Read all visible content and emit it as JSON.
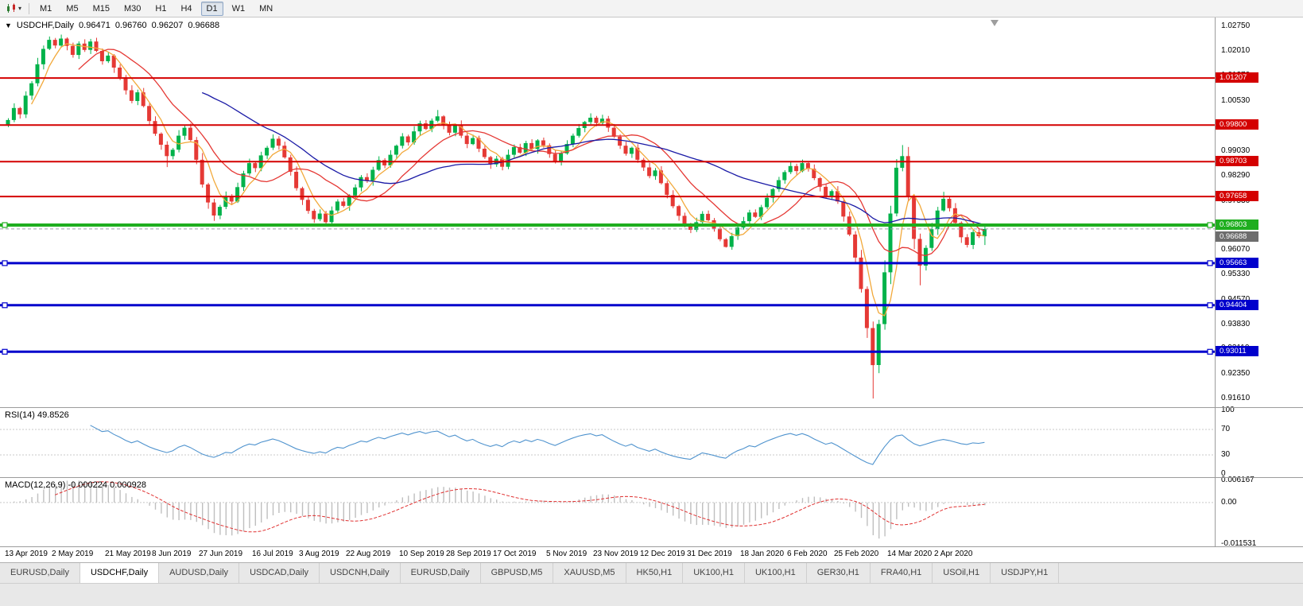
{
  "icons": {
    "caret": "▾",
    "marker": "▼"
  },
  "toolbar": {
    "chart_menu_icon": "candlestick-chart-icon",
    "timeframes": [
      {
        "label": "M1",
        "active": false
      },
      {
        "label": "M5",
        "active": false
      },
      {
        "label": "M15",
        "active": false
      },
      {
        "label": "M30",
        "active": false
      },
      {
        "label": "H1",
        "active": false
      },
      {
        "label": "H4",
        "active": false
      },
      {
        "label": "D1",
        "active": true
      },
      {
        "label": "W1",
        "active": false
      },
      {
        "label": "MN",
        "active": false
      }
    ]
  },
  "chart": {
    "symbol": "USDCHF,Daily",
    "open": "0.96471",
    "high": "0.96760",
    "low": "0.96207",
    "close": "0.96688",
    "bid_badge": "0.96688",
    "price_scale": [
      "1.02750",
      "1.02010",
      "1.01270",
      "1.00530",
      "0.99790",
      "0.99030",
      "0.98290",
      "0.97530",
      "0.96790",
      "0.96070",
      "0.95330",
      "0.94570",
      "0.93830",
      "0.93110",
      "0.92350",
      "0.91610"
    ],
    "levels": [
      {
        "price": 1.01207,
        "label": "1.01207",
        "color": "#d40000",
        "width": 2,
        "handles": false
      },
      {
        "price": 0.998,
        "label": "0.99800",
        "color": "#d40000",
        "width": 2,
        "handles": false
      },
      {
        "price": 0.98703,
        "label": "0.98703",
        "color": "#d40000",
        "width": 2,
        "handles": false
      },
      {
        "price": 0.97658,
        "label": "0.97658",
        "color": "#d40000",
        "width": 2,
        "handles": false
      },
      {
        "price": 0.96803,
        "label": "0.96803",
        "color": "#1fae1f",
        "width": 4,
        "handles": true
      },
      {
        "price": 0.95663,
        "label": "0.95663",
        "color": "#0000cc",
        "width": 3,
        "handles": true
      },
      {
        "price": 0.94404,
        "label": "0.94404",
        "color": "#0000cc",
        "width": 3,
        "handles": true
      },
      {
        "price": 0.93011,
        "label": "0.93011",
        "color": "#0000cc",
        "width": 3,
        "handles": true
      }
    ]
  },
  "rsi": {
    "label": "RSI(14) 49.8526",
    "period": 14,
    "levels": [
      70,
      30
    ],
    "scale": [
      "100",
      "70",
      "30",
      "0"
    ],
    "line_color": "#4f93ce"
  },
  "macd": {
    "label": "MACD(12,26,9) -0.000224 0.000928",
    "fast": 12,
    "slow": 26,
    "signal": 9,
    "scale_top": "0.006167",
    "scale_zero": "0.00",
    "scale_bottom": "-0.011531",
    "range": [
      -0.011531,
      0.006167
    ],
    "histogram_color": "#bfbfbf",
    "signal_color": "#e03030"
  },
  "tabs": [
    {
      "label": "EURUSD,Daily",
      "active": false
    },
    {
      "label": "USDCHF,Daily",
      "active": true
    },
    {
      "label": "AUDUSD,Daily",
      "active": false
    },
    {
      "label": "USDCAD,Daily",
      "active": false
    },
    {
      "label": "USDCNH,Daily",
      "active": false
    },
    {
      "label": "EURUSD,Daily",
      "active": false
    },
    {
      "label": "GBPUSD,M5",
      "active": false
    },
    {
      "label": "XAUUSD,M5",
      "active": false
    },
    {
      "label": "HK50,H1",
      "active": false
    },
    {
      "label": "UK100,H1",
      "active": false
    },
    {
      "label": "UK100,H1",
      "active": false
    },
    {
      "label": "GER30,H1",
      "active": false
    },
    {
      "label": "FRA40,H1",
      "active": false
    },
    {
      "label": "USOil,H1",
      "active": false
    },
    {
      "label": "USDJPY,H1",
      "active": false
    }
  ],
  "chart_data": {
    "type": "candlestick",
    "symbol": "USDCHF",
    "timeframe": "D1",
    "y_range": [
      0.9135,
      1.0302
    ],
    "x0": 10,
    "dx": 7.4,
    "body_w": 5,
    "up_color": "#00b24a",
    "down_color": "#e53935",
    "first_open": 0.9982,
    "wick_pattern": [
      0.0009,
      0.0017,
      0.0005,
      0.0013,
      0.0008,
      0.0019,
      0.0011,
      0.0015
    ],
    "wick_overrides": {
      "7": {
        "high": 1.0245
      },
      "27": {
        "low": 0.9854
      },
      "35": {
        "low": 0.9693
      },
      "45": {
        "high": 0.9952
      },
      "54": {
        "low": 0.9678
      },
      "73": {
        "high": 1.0025
      },
      "99": {
        "high": 1.0015
      },
      "122": {
        "low": 0.9613
      },
      "147": {
        "low": 0.9161
      },
      "152": {
        "high": 0.992
      },
      "155": {
        "low": 0.95
      },
      "159": {
        "high": 0.978
      },
      "166": {
        "high": 0.9676,
        "low": 0.96207
      }
    },
    "ma": [
      {
        "period": 5,
        "color": "#f2a93b"
      },
      {
        "period": 13,
        "color": "#e53935"
      },
      {
        "period": 34,
        "color": "#1a1aa6"
      }
    ],
    "x_labels": [
      {
        "text": "13 Apr 2019",
        "i": 0
      },
      {
        "text": "2 May 2019",
        "i": 8
      },
      {
        "text": "21 May 2019",
        "i": 17
      },
      {
        "text": "8 Jun 2019",
        "i": 25
      },
      {
        "text": "27 Jun 2019",
        "i": 33
      },
      {
        "text": "16 Jul 2019",
        "i": 42
      },
      {
        "text": "3 Aug 2019",
        "i": 50
      },
      {
        "text": "22 Aug 2019",
        "i": 58
      },
      {
        "text": "10 Sep 2019",
        "i": 67
      },
      {
        "text": "28 Sep 2019",
        "i": 75
      },
      {
        "text": "17 Oct 2019",
        "i": 83
      },
      {
        "text": "5 Nov 2019",
        "i": 92
      },
      {
        "text": "23 Nov 2019",
        "i": 100
      },
      {
        "text": "12 Dec 2019",
        "i": 108
      },
      {
        "text": "31 Dec 2019",
        "i": 116
      },
      {
        "text": "18 Jan 2020",
        "i": 125
      },
      {
        "text": "6 Feb 2020",
        "i": 133
      },
      {
        "text": "25 Feb 2020",
        "i": 141
      },
      {
        "text": "14 Mar 2020",
        "i": 150
      },
      {
        "text": "2 Apr 2020",
        "i": 158
      }
    ],
    "closes": [
      0.9995,
      1.0031,
      1.0012,
      1.0068,
      1.0105,
      1.0162,
      1.0208,
      1.0235,
      1.0218,
      1.0239,
      1.0217,
      1.019,
      1.0224,
      1.0205,
      1.023,
      1.0202,
      1.0171,
      1.0188,
      1.0152,
      1.0123,
      1.0084,
      1.0052,
      1.0078,
      1.0037,
      0.9992,
      0.9954,
      0.9921,
      0.9887,
      0.9906,
      0.9948,
      0.9972,
      0.9935,
      0.9876,
      0.9802,
      0.9748,
      0.9709,
      0.9735,
      0.9766,
      0.9751,
      0.9794,
      0.9835,
      0.9866,
      0.9851,
      0.9889,
      0.9912,
      0.9939,
      0.9918,
      0.9883,
      0.984,
      0.9791,
      0.9756,
      0.9723,
      0.9698,
      0.9715,
      0.9689,
      0.9724,
      0.9751,
      0.9738,
      0.9769,
      0.9793,
      0.9824,
      0.9812,
      0.9846,
      0.9875,
      0.9859,
      0.9891,
      0.9918,
      0.9946,
      0.9928,
      0.9961,
      0.9985,
      0.9968,
      0.9993,
      1.0006,
      0.9981,
      0.9957,
      0.9979,
      0.9948,
      0.9923,
      0.9941,
      0.9909,
      0.9884,
      0.9862,
      0.9879,
      0.9855,
      0.9891,
      0.9914,
      0.9897,
      0.9926,
      0.9908,
      0.9934,
      0.9919,
      0.9893,
      0.9871,
      0.9895,
      0.9923,
      0.9948,
      0.9971,
      0.9989,
      1.0002,
      0.9986,
      0.9999,
      0.9972,
      0.9945,
      0.9918,
      0.9894,
      0.9912,
      0.9876,
      0.9853,
      0.9827,
      0.9844,
      0.9806,
      0.9771,
      0.9737,
      0.9708,
      0.9682,
      0.9666,
      0.9689,
      0.9714,
      0.9695,
      0.967,
      0.9638,
      0.9615,
      0.9647,
      0.9673,
      0.9692,
      0.9718,
      0.9705,
      0.9734,
      0.9762,
      0.9788,
      0.9815,
      0.9839,
      0.9857,
      0.9842,
      0.9866,
      0.9849,
      0.9821,
      0.9795,
      0.9768,
      0.9782,
      0.9751,
      0.9706,
      0.9652,
      0.9583,
      0.9489,
      0.9372,
      0.9261,
      0.9384,
      0.9539,
      0.9715,
      0.9852,
      0.9887,
      0.9764,
      0.9639,
      0.9559,
      0.9612,
      0.9668,
      0.9724,
      0.9759,
      0.9731,
      0.9687,
      0.9644,
      0.9621,
      0.9659,
      0.9647,
      0.96688
    ]
  }
}
